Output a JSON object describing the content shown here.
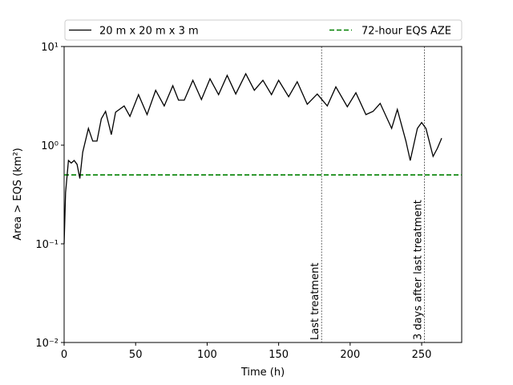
{
  "chart_data": {
    "type": "line",
    "x_label": "Time (h)",
    "y_label": "Area > EQS (km²)",
    "log_y": true,
    "xlim": [
      0,
      278
    ],
    "ylim": [
      0.01,
      10
    ],
    "xticks": [
      0,
      50,
      100,
      150,
      200,
      250
    ],
    "yticks": [
      {
        "value": 0.01,
        "label": "10⁻²"
      },
      {
        "value": 0.1,
        "label": "10⁻¹"
      },
      {
        "value": 1,
        "label": "10⁰"
      },
      {
        "value": 10,
        "label": "10¹"
      }
    ],
    "legend": "top",
    "x": [
      0,
      1,
      3,
      5,
      7,
      9,
      11,
      13,
      17,
      20,
      23,
      26,
      29,
      33,
      36,
      42,
      46,
      52,
      58,
      64,
      70,
      76,
      80,
      84,
      90,
      96,
      102,
      108,
      114,
      120,
      127,
      133,
      139,
      145,
      150,
      157,
      163,
      170,
      177,
      184,
      190,
      198,
      204,
      211,
      216,
      221,
      229,
      233,
      239,
      242,
      247,
      250,
      253,
      258,
      261,
      264
    ],
    "series": [
      {
        "name": "20 m x 20 m x 3 m",
        "color": "#000000",
        "values": [
          0.1,
          0.33,
          0.7,
          0.66,
          0.7,
          0.64,
          0.46,
          0.85,
          1.48,
          1.1,
          1.1,
          1.85,
          2.2,
          1.28,
          2.16,
          2.5,
          1.96,
          3.25,
          2.04,
          3.6,
          2.5,
          4.0,
          2.86,
          2.86,
          4.55,
          2.9,
          4.7,
          3.25,
          5.1,
          3.3,
          5.3,
          3.6,
          4.55,
          3.25,
          4.55,
          3.1,
          4.4,
          2.6,
          3.3,
          2.5,
          3.9,
          2.45,
          3.4,
          2.04,
          2.2,
          2.65,
          1.48,
          2.3,
          1.1,
          0.7,
          1.48,
          1.7,
          1.48,
          0.77,
          0.93,
          1.18
        ]
      }
    ],
    "reference_line": {
      "name": "72-hour EQS AZE",
      "value": 0.5,
      "color": "#008000"
    },
    "annotations": [
      {
        "text": "Last treatment",
        "x": 180
      },
      {
        "text": "3 days after last treatment",
        "x": 252
      }
    ]
  }
}
